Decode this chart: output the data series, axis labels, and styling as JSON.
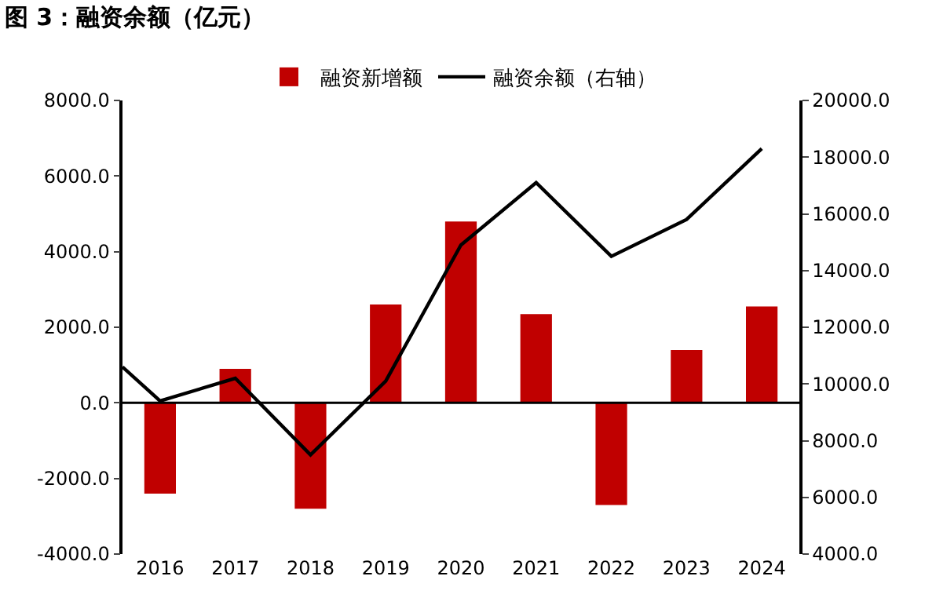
{
  "chart_data": {
    "type": "bar",
    "title": "图 3：融资余额（亿元）",
    "x": [
      2016,
      2017,
      2018,
      2019,
      2020,
      2021,
      2022,
      2023,
      2024
    ],
    "xlim": [
      2015.5,
      2024.5
    ],
    "xticks": [
      2016,
      2017,
      2018,
      2019,
      2020,
      2021,
      2022,
      2023,
      2024
    ],
    "series": [
      {
        "name": "融资新增额",
        "color": "#c00000",
        "values": [
          -2400,
          900,
          -2800,
          2600,
          4800,
          2350,
          -2700,
          1400,
          2550
        ]
      },
      {
        "name": "融资余额（右轴）",
        "type": "line",
        "axis": "y2",
        "color": "#000000",
        "x": [
          2015.5,
          2016,
          2017,
          2018,
          2019,
          2020,
          2021,
          2022,
          2023,
          2024
        ],
        "values": [
          10600,
          9400,
          10200,
          7500,
          10100,
          14900,
          17100,
          14500,
          15800,
          18300
        ]
      }
    ],
    "ylim": [
      -4000,
      8000
    ],
    "yticks": [
      {
        "value": -4000,
        "label": "-4000.0"
      },
      {
        "value": -2000,
        "label": "-2000.0"
      },
      {
        "value": 0,
        "label": "0.0"
      },
      {
        "value": 2000,
        "label": "2000.0"
      },
      {
        "value": 4000,
        "label": "4000.0"
      },
      {
        "value": 6000,
        "label": "6000.0"
      },
      {
        "value": 8000,
        "label": "8000.0"
      }
    ],
    "y2lim": [
      4000,
      20000
    ],
    "y2ticks": [
      {
        "value": 4000,
        "label": "4000.0"
      },
      {
        "value": 6000,
        "label": "6000.0"
      },
      {
        "value": 8000,
        "label": "8000.0"
      },
      {
        "value": 10000,
        "label": "10000.0"
      },
      {
        "value": 12000,
        "label": "12000.0"
      },
      {
        "value": 14000,
        "label": "14000.0"
      },
      {
        "value": 16000,
        "label": "16000.0"
      },
      {
        "value": 18000,
        "label": "18000.0"
      },
      {
        "value": 20000,
        "label": "20000.0"
      }
    ],
    "ref_lines": [
      {
        "axis": "y",
        "value": 0,
        "color": "#000000"
      }
    ],
    "legend": "top"
  }
}
